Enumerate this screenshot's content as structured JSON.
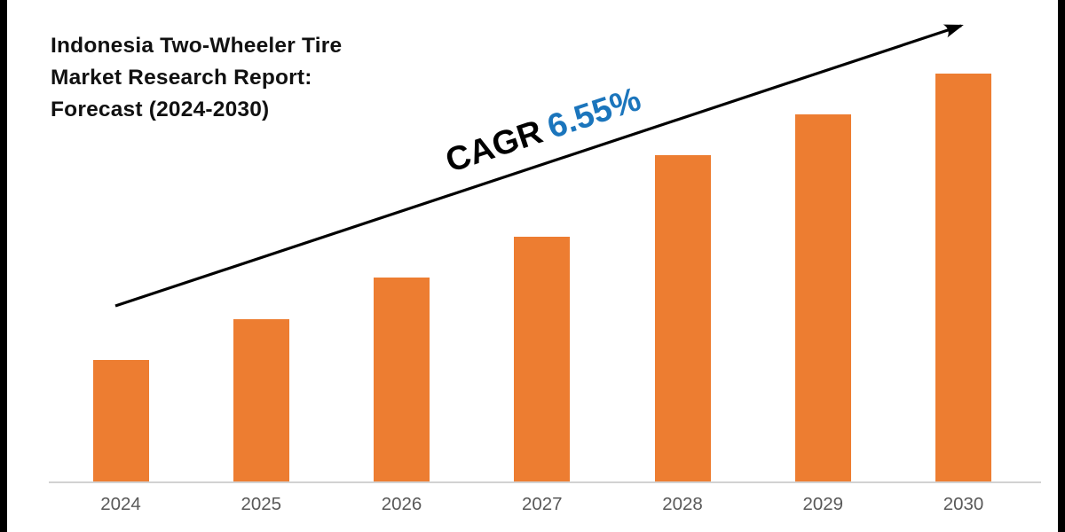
{
  "title": {
    "text": "Indonesia Two-Wheeler Tire Market Research Report: Forecast (2024-2030)",
    "lines": [
      "Indonesia Two-Wheeler Tire",
      "Market Research Report:",
      "Forecast (2024-2030)"
    ]
  },
  "annotation": {
    "label": "CAGR",
    "value": "6.55%"
  },
  "colors": {
    "bar": "#ED7D31",
    "cagr_label": "#000000",
    "cagr_value": "#1B75BC",
    "title_text": "#111111",
    "axis_label": "#595959",
    "baseline": "#D2D2D2",
    "arrow": "#000000",
    "edge_strip": "#000000",
    "background": "#ffffff"
  },
  "chart_data": {
    "type": "bar",
    "title": "Indonesia Two-Wheeler Tire Market Research Report: Forecast (2024-2030)",
    "categories": [
      "2024",
      "2025",
      "2026",
      "2027",
      "2028",
      "2029",
      "2030"
    ],
    "values": [
      3,
      4,
      5,
      6,
      8,
      9,
      10
    ],
    "values_note": "relative bar heights; chart shows no value axis or data labels",
    "xlabel": "",
    "ylabel": "",
    "ylim": [
      0,
      10.6
    ],
    "grid": false,
    "y_axis_visible": false,
    "legend_position": "none",
    "annotations": [
      {
        "text": "CAGR 6.55%",
        "type": "rising-trend-arrow"
      }
    ]
  }
}
